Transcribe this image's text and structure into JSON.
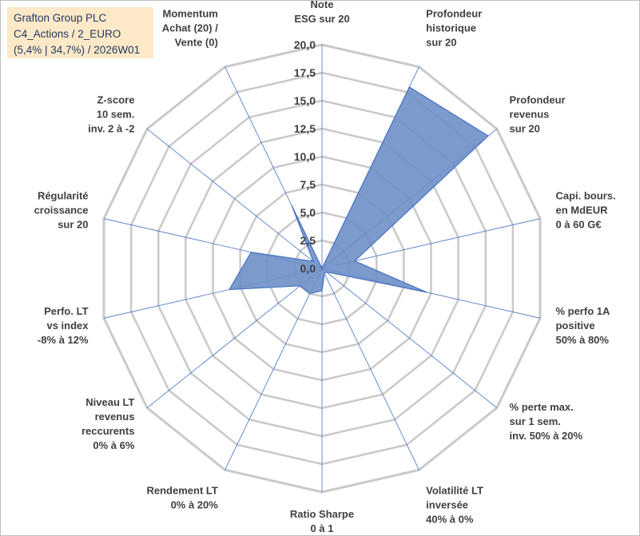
{
  "info": {
    "line1": "Grafton Group PLC",
    "line2": "C4_Actions / 2_EURO",
    "line3": "(5,4% | 34,7%) / 2026W01"
  },
  "chart_data": {
    "type": "radar",
    "rmax": 20,
    "ticks": [
      "0,0",
      "2,5",
      "5,0",
      "7,5",
      "10,0",
      "12,5",
      "15,0",
      "17,5",
      "20,0"
    ],
    "tick_values": [
      0,
      2.5,
      5,
      7.5,
      10,
      12.5,
      15,
      17.5,
      20
    ],
    "axes": [
      {
        "label": [
          "Note",
          "ESG sur 20"
        ],
        "value": 0
      },
      {
        "label": [
          "Profondeur",
          "historique",
          "sur 20"
        ],
        "value": 18.0
      },
      {
        "label": [
          "Profondeur",
          "revenus",
          "sur 20"
        ],
        "value": 19.0
      },
      {
        "label": [
          "Capi. bours.",
          "en MdEUR",
          "0 à 60 G€"
        ],
        "value": 3.0
      },
      {
        "label": [
          "% perfo 1A",
          "positive",
          "50% à 80%"
        ],
        "value": 9.6
      },
      {
        "label": [
          "% perte max.",
          "sur 1 sem.",
          "inv. 50% à 20%"
        ],
        "value": 0.5
      },
      {
        "label": [
          "Volatilité LT",
          "inversée",
          "40% à 0%"
        ],
        "value": 0.5
      },
      {
        "label": [
          "Ratio Sharpe",
          "0 à 1"
        ],
        "value": 2.0
      },
      {
        "label": [
          "Rendement LT",
          "0% à 20%"
        ],
        "value": 2.5
      },
      {
        "label": [
          "Niveau LT",
          "revenus",
          "reccurents",
          "0% à 6%"
        ],
        "value": 2.5
      },
      {
        "label": [
          "Perfo. LT",
          "vs index",
          "-8% à 12%"
        ],
        "value": 8.5
      },
      {
        "label": [
          "Régularité",
          "croissance",
          "sur 20"
        ],
        "value": 6.5
      },
      {
        "label": [
          "Z-score",
          "10 sem.",
          "inv. 2 à -2"
        ],
        "value": 1.0
      },
      {
        "label": [
          "Momentum",
          "Achat (20) /",
          "Vente (0)"
        ],
        "value": 6.2
      }
    ],
    "series": [
      {
        "values": [
          0,
          18.0,
          19.0,
          3.0,
          9.6,
          0.5,
          0.5,
          2.0,
          2.5,
          2.5,
          8.5,
          6.5,
          1.0,
          6.2
        ]
      }
    ],
    "colors": {
      "fill": "#6f8fc8",
      "stroke": "#4472c4",
      "grid": "#c9c9c9",
      "axis": "#4472c4"
    }
  }
}
